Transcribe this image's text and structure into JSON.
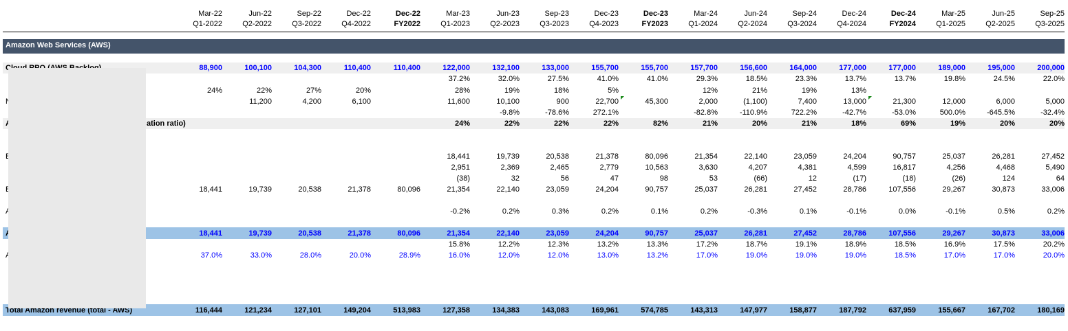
{
  "header": {
    "columns": [
      {
        "period": "Mar-22",
        "quarter": "Q1-2022",
        "bold": false
      },
      {
        "period": "Jun-22",
        "quarter": "Q2-2022",
        "bold": false
      },
      {
        "period": "Sep-22",
        "quarter": "Q3-2022",
        "bold": false
      },
      {
        "period": "Dec-22",
        "quarter": "Q4-2022",
        "bold": false
      },
      {
        "period": "Dec-22",
        "quarter": "FY2022",
        "bold": true
      },
      {
        "period": "Mar-23",
        "quarter": "Q1-2023",
        "bold": false
      },
      {
        "period": "Jun-23",
        "quarter": "Q2-2023",
        "bold": false
      },
      {
        "period": "Sep-23",
        "quarter": "Q3-2023",
        "bold": false
      },
      {
        "period": "Dec-23",
        "quarter": "Q4-2023",
        "bold": false
      },
      {
        "period": "Dec-23",
        "quarter": "FY2023",
        "bold": true
      },
      {
        "period": "Mar-24",
        "quarter": "Q1-2024",
        "bold": false
      },
      {
        "period": "Jun-24",
        "quarter": "Q2-2024",
        "bold": false
      },
      {
        "period": "Sep-24",
        "quarter": "Q3-2024",
        "bold": false
      },
      {
        "period": "Dec-24",
        "quarter": "Q4-2024",
        "bold": false
      },
      {
        "period": "Dec-24",
        "quarter": "FY2024",
        "bold": true
      },
      {
        "period": "Mar-25",
        "quarter": "Q1-2025",
        "bold": false
      },
      {
        "period": "Jun-25",
        "quarter": "Q2-2025",
        "bold": false
      },
      {
        "period": "Sep-25",
        "quarter": "Q3-2025",
        "bold": false
      }
    ]
  },
  "section": {
    "title": "Amazon Web Services (AWS)"
  },
  "row_labels": {
    "backlog": "Cloud RPO (AWS Backlog)",
    "ratio": "ation ratio)",
    "r1": "N",
    "r2": "A",
    "r3": "E",
    "r4": "E",
    "r5": "A",
    "r6": "A",
    "r7": "A",
    "total": "Total Amazon revenue (total - AWS)"
  },
  "rows": {
    "backlog": [
      "88,900",
      "100,100",
      "104,300",
      "110,400",
      "110,400",
      "122,000",
      "132,100",
      "133,000",
      "155,700",
      "155,700",
      "157,700",
      "156,600",
      "164,000",
      "177,000",
      "177,000",
      "189,000",
      "195,000",
      "200,000"
    ],
    "backlog_yoy": [
      "",
      "",
      "",
      "",
      "",
      "37.2%",
      "32.0%",
      "27.5%",
      "41.0%",
      "41.0%",
      "29.3%",
      "18.5%",
      "23.3%",
      "13.7%",
      "13.7%",
      "19.8%",
      "24.5%",
      "22.0%"
    ],
    "growth_pct": [
      "24%",
      "22%",
      "27%",
      "20%",
      "",
      "28%",
      "19%",
      "18%",
      "5%",
      "",
      "12%",
      "21%",
      "19%",
      "13%",
      "",
      "",
      "",
      ""
    ],
    "net_adds": [
      "",
      "11,200",
      "4,200",
      "6,100",
      "",
      "11,600",
      "10,100",
      "900",
      "22,700",
      "45,300",
      "2,000",
      "(1,100)",
      "7,400",
      "13,000",
      "21,300",
      "12,000",
      "6,000",
      "5,000"
    ],
    "net_adds_chg": [
      "",
      "",
      "",
      "",
      "",
      "",
      "-9.8%",
      "-78.6%",
      "272.1%",
      "",
      "-82.8%",
      "-110.9%",
      "722.2%",
      "-42.7%",
      "-53.0%",
      "500.0%",
      "-645.5%",
      "-32.4%"
    ],
    "ratio": [
      "",
      "",
      "",
      "",
      "",
      "24%",
      "22%",
      "22%",
      "22%",
      "82%",
      "21%",
      "20%",
      "21%",
      "18%",
      "69%",
      "19%",
      "20%",
      "20%"
    ],
    "beg_rev": [
      "",
      "",
      "",
      "",
      "",
      "18,441",
      "19,739",
      "20,538",
      "21,378",
      "80,096",
      "21,354",
      "22,140",
      "23,059",
      "24,204",
      "90,757",
      "25,037",
      "26,281",
      "27,452"
    ],
    "adds_rev": [
      "",
      "",
      "",
      "",
      "",
      "2,951",
      "2,369",
      "2,465",
      "2,779",
      "10,563",
      "3,630",
      "4,207",
      "4,381",
      "4,599",
      "16,817",
      "4,256",
      "4,468",
      "5,490"
    ],
    "adj_rev": [
      "",
      "",
      "",
      "",
      "",
      "(38)",
      "32",
      "56",
      "47",
      "98",
      "53",
      "(66)",
      "12",
      "(17)",
      "(18)",
      "(26)",
      "124",
      "64"
    ],
    "end_rev": [
      "18,441",
      "19,739",
      "20,538",
      "21,378",
      "80,096",
      "21,354",
      "22,140",
      "23,059",
      "24,204",
      "90,757",
      "25,037",
      "26,281",
      "27,452",
      "28,786",
      "107,556",
      "29,267",
      "30,873",
      "33,006"
    ],
    "adj_pct": [
      "",
      "",
      "",
      "",
      "",
      "-0.2%",
      "0.2%",
      "0.3%",
      "0.2%",
      "0.1%",
      "0.2%",
      "-0.3%",
      "0.1%",
      "-0.1%",
      "0.0%",
      "-0.1%",
      "0.5%",
      "0.2%"
    ],
    "aws_rev": [
      "18,441",
      "19,739",
      "20,538",
      "21,378",
      "80,096",
      "21,354",
      "22,140",
      "23,059",
      "24,204",
      "90,757",
      "25,037",
      "26,281",
      "27,452",
      "28,786",
      "107,556",
      "29,267",
      "30,873",
      "33,006"
    ],
    "aws_yoy": [
      "",
      "",
      "",
      "",
      "",
      "15.8%",
      "12.2%",
      "12.3%",
      "13.2%",
      "13.3%",
      "17.2%",
      "18.7%",
      "19.1%",
      "18.9%",
      "18.5%",
      "16.9%",
      "17.5%",
      "20.2%"
    ],
    "aws_growth_in": [
      "37.0%",
      "33.0%",
      "28.0%",
      "20.0%",
      "28.9%",
      "16.0%",
      "12.0%",
      "12.0%",
      "13.0%",
      "13.2%",
      "17.0%",
      "19.0%",
      "19.0%",
      "19.0%",
      "18.5%",
      "17.0%",
      "17.0%",
      "20.0%"
    ],
    "total_rev": [
      "116,444",
      "121,234",
      "127,101",
      "149,204",
      "513,983",
      "127,358",
      "134,383",
      "143,083",
      "169,961",
      "574,785",
      "143,313",
      "147,977",
      "158,877",
      "187,792",
      "637,959",
      "155,667",
      "167,702",
      "180,169"
    ]
  },
  "colors": {
    "section_bar": "#44546a",
    "blue_band": "#9dc3e6",
    "grey_band": "#efefef",
    "input_blue": "#0000ff",
    "redaction": "#e9e9e9"
  }
}
